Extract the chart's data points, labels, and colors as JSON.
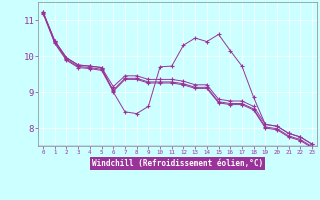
{
  "xlabel": "Windchill (Refroidissement éolien,°C)",
  "background_color": "#ccffff",
  "line_color": "#993399",
  "grid_color": "#aacccc",
  "xlim": [
    -0.4,
    23.4
  ],
  "ylim": [
    7.5,
    11.5
  ],
  "yticks": [
    8,
    9,
    10,
    11
  ],
  "xticks": [
    0,
    1,
    2,
    3,
    4,
    5,
    6,
    7,
    8,
    9,
    10,
    11,
    12,
    13,
    14,
    15,
    16,
    17,
    18,
    19,
    20,
    21,
    22,
    23
  ],
  "series": [
    [
      11.22,
      10.42,
      9.95,
      9.75,
      9.72,
      9.68,
      9.0,
      8.45,
      8.4,
      8.6,
      9.7,
      9.72,
      10.3,
      10.5,
      10.4,
      10.6,
      10.15,
      9.72,
      8.85,
      8.1,
      8.05,
      7.85,
      7.75,
      7.55
    ],
    [
      11.22,
      10.42,
      9.95,
      9.75,
      9.72,
      9.68,
      9.15,
      9.45,
      9.45,
      9.35,
      9.35,
      9.35,
      9.3,
      9.2,
      9.2,
      8.8,
      8.75,
      8.75,
      8.6,
      8.1,
      8.05,
      7.85,
      7.75,
      7.55
    ],
    [
      11.2,
      10.38,
      9.91,
      9.71,
      9.68,
      9.63,
      9.05,
      9.38,
      9.38,
      9.28,
      9.28,
      9.28,
      9.23,
      9.13,
      9.13,
      8.73,
      8.68,
      8.68,
      8.53,
      8.03,
      7.98,
      7.78,
      7.68,
      7.48
    ],
    [
      11.18,
      10.35,
      9.88,
      9.68,
      9.65,
      9.6,
      9.02,
      9.35,
      9.35,
      9.25,
      9.25,
      9.25,
      9.2,
      9.1,
      9.1,
      8.7,
      8.65,
      8.65,
      8.5,
      8.0,
      7.95,
      7.75,
      7.65,
      7.45
    ]
  ]
}
